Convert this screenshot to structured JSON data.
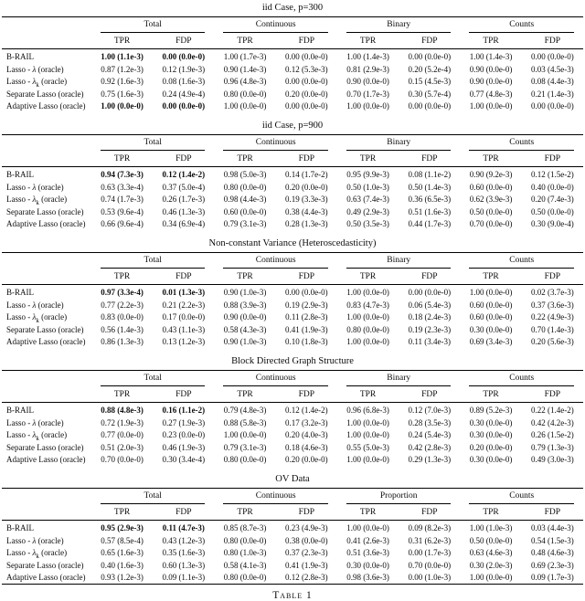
{
  "document": {
    "caption": "Table 1"
  },
  "subheaders": [
    "TPR",
    "FDP"
  ],
  "methods": [
    {
      "prefix": "B-RAIL",
      "math": "",
      "sub": "",
      "rest": ""
    },
    {
      "prefix": "Lasso - ",
      "math": "λ",
      "sub": "",
      "rest": " (oracle)"
    },
    {
      "prefix": "Lasso - ",
      "math": "λ",
      "sub": "k",
      "rest": " (oracle)"
    },
    {
      "prefix": "Separate Lasso",
      "math": "",
      "sub": "",
      "rest": " (oracle)"
    },
    {
      "prefix": "Adaptive Lasso",
      "math": "",
      "sub": "",
      "rest": " (oracle)"
    }
  ],
  "sections": [
    {
      "title": "iid Case, p=300",
      "groups": [
        "Total",
        "Continuous",
        "Binary",
        "Counts"
      ],
      "rows": [
        {
          "cells": [
            "1.00 (1.1e-3)",
            "0.00 (0.0e-0)",
            "1.00 (1.7e-3)",
            "0.00 (0.0e-0)",
            "1.00 (1.4e-3)",
            "0.00 (0.0e-0)",
            "1.00 (1.4e-3)",
            "0.00 (0.0e-0)"
          ],
          "bold": [
            0,
            1
          ]
        },
        {
          "cells": [
            "0.87 (1.2e-3)",
            "0.12 (1.9e-3)",
            "0.90 (1.4e-3)",
            "0.12 (5.3e-3)",
            "0.81 (2.9e-3)",
            "0.20 (5.2e-4)",
            "0.90 (0.0e-0)",
            "0.03 (4.5e-3)"
          ],
          "bold": []
        },
        {
          "cells": [
            "0.92 (1.6e-3)",
            "0.08 (1.6e-3)",
            "0.96 (4.8e-3)",
            "0.00 (0.0e-0)",
            "0.90 (0.0e-0)",
            "0.15 (4.5e-3)",
            "0.90 (0.0e-0)",
            "0.08 (4.4e-3)"
          ],
          "bold": []
        },
        {
          "cells": [
            "0.75 (1.6e-3)",
            "0.24 (4.9e-4)",
            "0.80 (0.0e-0)",
            "0.20 (0.0e-0)",
            "0.70 (1.7e-3)",
            "0.30 (5.7e-4)",
            "0.77 (4.8e-3)",
            "0.21 (1.4e-3)"
          ],
          "bold": []
        },
        {
          "cells": [
            "1.00 (0.0e-0)",
            "0.00 (0.0e-0)",
            "1.00 (0.0e-0)",
            "0.00 (0.0e-0)",
            "1.00 (0.0e-0)",
            "0.00 (0.0e-0)",
            "1.00 (0.0e-0)",
            "0.00 (0.0e-0)"
          ],
          "bold": [
            0,
            1
          ]
        }
      ]
    },
    {
      "title": "iid Case, p=900",
      "groups": [
        "Total",
        "Continuous",
        "Binary",
        "Counts"
      ],
      "rows": [
        {
          "cells": [
            "0.94 (7.3e-3)",
            "0.12 (1.4e-2)",
            "0.98 (5.0e-3)",
            "0.14 (1.7e-2)",
            "0.95 (9.9e-3)",
            "0.08 (1.1e-2)",
            "0.90 (9.2e-3)",
            "0.12 (1.5e-2)"
          ],
          "bold": [
            0,
            1
          ]
        },
        {
          "cells": [
            "0.63 (3.3e-4)",
            "0.37 (5.0e-4)",
            "0.80 (0.0e-0)",
            "0.20 (0.0e-0)",
            "0.50 (1.0e-3)",
            "0.50 (1.4e-3)",
            "0.60 (0.0e-0)",
            "0.40 (0.0e-0)"
          ],
          "bold": []
        },
        {
          "cells": [
            "0.74 (1.7e-3)",
            "0.26 (1.7e-3)",
            "0.98 (4.4e-3)",
            "0.19 (3.3e-3)",
            "0.63 (7.4e-3)",
            "0.36 (6.5e-3)",
            "0.62 (3.9e-3)",
            "0.20 (7.4e-3)"
          ],
          "bold": []
        },
        {
          "cells": [
            "0.53 (9.6e-4)",
            "0.46 (1.3e-3)",
            "0.60 (0.0e-0)",
            "0.38 (4.4e-3)",
            "0.49 (2.9e-3)",
            "0.51 (1.6e-3)",
            "0.50 (0.0e-0)",
            "0.50 (0.0e-0)"
          ],
          "bold": []
        },
        {
          "cells": [
            "0.66 (9.6e-4)",
            "0.34 (6.9e-4)",
            "0.79 (3.1e-3)",
            "0.28 (1.3e-3)",
            "0.50 (3.5e-3)",
            "0.44 (1.7e-3)",
            "0.70 (0.0e-0)",
            "0.30 (9.0e-4)"
          ],
          "bold": []
        }
      ]
    },
    {
      "title": "Non-constant Variance (Heteroscedasticity)",
      "groups": [
        "Total",
        "Continuous",
        "Binary",
        "Counts"
      ],
      "rows": [
        {
          "cells": [
            "0.97 (3.3e-4)",
            "0.01 (1.3e-3)",
            "0.90 (1.0e-3)",
            "0.00 (0.0e-0)",
            "1.00 (0.0e-0)",
            "0.00 (0.0e-0)",
            "1.00 (0.0e-0)",
            "0.02 (3.7e-3)"
          ],
          "bold": [
            0,
            1
          ]
        },
        {
          "cells": [
            "0.77 (2.2e-3)",
            "0.21 (2.2e-3)",
            "0.88 (3.9e-3)",
            "0.19 (2.9e-3)",
            "0.83 (4.7e-3)",
            "0.06 (5.4e-3)",
            "0.60 (0.0e-0)",
            "0.37 (3.6e-3)"
          ],
          "bold": []
        },
        {
          "cells": [
            "0.83 (0.0e-0)",
            "0.17 (0.0e-0)",
            "0.90 (0.0e-0)",
            "0.11 (2.8e-3)",
            "1.00 (0.0e-0)",
            "0.18 (2.4e-3)",
            "0.60 (0.0e-0)",
            "0.22 (4.9e-3)"
          ],
          "bold": []
        },
        {
          "cells": [
            "0.56 (1.4e-3)",
            "0.43 (1.1e-3)",
            "0.58 (4.3e-3)",
            "0.41 (1.9e-3)",
            "0.80 (0.0e-0)",
            "0.19 (2.3e-3)",
            "0.30 (0.0e-0)",
            "0.70 (1.4e-3)"
          ],
          "bold": []
        },
        {
          "cells": [
            "0.86 (1.3e-3)",
            "0.13 (1.2e-3)",
            "0.90 (1.0e-3)",
            "0.10 (1.8e-3)",
            "1.00 (0.0e-0)",
            "0.11 (3.4e-3)",
            "0.69 (3.4e-3)",
            "0.20 (5.6e-3)"
          ],
          "bold": []
        }
      ]
    },
    {
      "title": "Block Directed Graph Structure",
      "groups": [
        "Total",
        "Continuous",
        "Binary",
        "Counts"
      ],
      "rows": [
        {
          "cells": [
            "0.88 (4.8e-3)",
            "0.16 (1.1e-2)",
            "0.79 (4.8e-3)",
            "0.12 (1.4e-2)",
            "0.96 (6.8e-3)",
            "0.12 (7.0e-3)",
            "0.89 (5.2e-3)",
            "0.22 (1.4e-2)"
          ],
          "bold": [
            0,
            1
          ]
        },
        {
          "cells": [
            "0.72 (1.9e-3)",
            "0.27 (1.9e-3)",
            "0.88 (5.8e-3)",
            "0.17 (3.2e-3)",
            "1.00 (0.0e-0)",
            "0.28 (3.5e-3)",
            "0.30 (0.0e-0)",
            "0.42 (4.2e-3)"
          ],
          "bold": []
        },
        {
          "cells": [
            "0.77 (0.0e-0)",
            "0.23 (0.0e-0)",
            "1.00 (0.0e-0)",
            "0.20 (4.0e-3)",
            "1.00 (0.0e-0)",
            "0.24 (5.4e-3)",
            "0.30 (0.0e-0)",
            "0.26 (1.5e-2)"
          ],
          "bold": []
        },
        {
          "cells": [
            "0.51 (2.0e-3)",
            "0.46 (1.9e-3)",
            "0.79 (3.1e-3)",
            "0.18 (4.6e-3)",
            "0.55 (5.0e-3)",
            "0.42 (2.8e-3)",
            "0.20 (0.0e-0)",
            "0.79 (1.3e-3)"
          ],
          "bold": []
        },
        {
          "cells": [
            "0.70 (0.0e-0)",
            "0.30 (3.4e-4)",
            "0.80 (0.0e-0)",
            "0.20 (0.0e-0)",
            "1.00 (0.0e-0)",
            "0.29 (1.3e-3)",
            "0.30 (0.0e-0)",
            "0.49 (3.0e-3)"
          ],
          "bold": []
        }
      ]
    },
    {
      "title": "OV Data",
      "groups": [
        "Total",
        "Continuous",
        "Proportion",
        "Counts"
      ],
      "rows": [
        {
          "cells": [
            "0.95 (2.9e-3)",
            "0.11 (4.7e-3)",
            "0.85 (8.7e-3)",
            "0.23 (4.9e-3)",
            "1.00 (0.0e-0)",
            "0.09 (8.2e-3)",
            "1.00 (1.0e-3)",
            "0.03 (4.4e-3)"
          ],
          "bold": [
            0,
            1
          ]
        },
        {
          "cells": [
            "0.57 (8.5e-4)",
            "0.43 (1.2e-3)",
            "0.80 (0.0e-0)",
            "0.38 (0.0e-0)",
            "0.41 (2.6e-3)",
            "0.31 (6.2e-3)",
            "0.50 (0.0e-0)",
            "0.54 (1.5e-3)"
          ],
          "bold": []
        },
        {
          "cells": [
            "0.65 (1.6e-3)",
            "0.35 (1.6e-3)",
            "0.80 (1.0e-3)",
            "0.37 (2.3e-3)",
            "0.51 (3.6e-3)",
            "0.00 (1.7e-3)",
            "0.63 (4.6e-3)",
            "0.48 (4.6e-3)"
          ],
          "bold": []
        },
        {
          "cells": [
            "0.40 (1.6e-3)",
            "0.60 (1.3e-3)",
            "0.58 (4.1e-3)",
            "0.41 (1.9e-3)",
            "0.30 (0.0e-0)",
            "0.70 (0.0e-0)",
            "0.30 (2.0e-3)",
            "0.69 (2.3e-3)"
          ],
          "bold": []
        },
        {
          "cells": [
            "0.93 (1.2e-3)",
            "0.09 (1.1e-3)",
            "0.80 (0.0e-0)",
            "0.12 (2.8e-3)",
            "0.98 (3.6e-3)",
            "0.00 (1.0e-3)",
            "1.00 (0.0e-0)",
            "0.09 (1.7e-3)"
          ],
          "bold": []
        }
      ]
    }
  ]
}
